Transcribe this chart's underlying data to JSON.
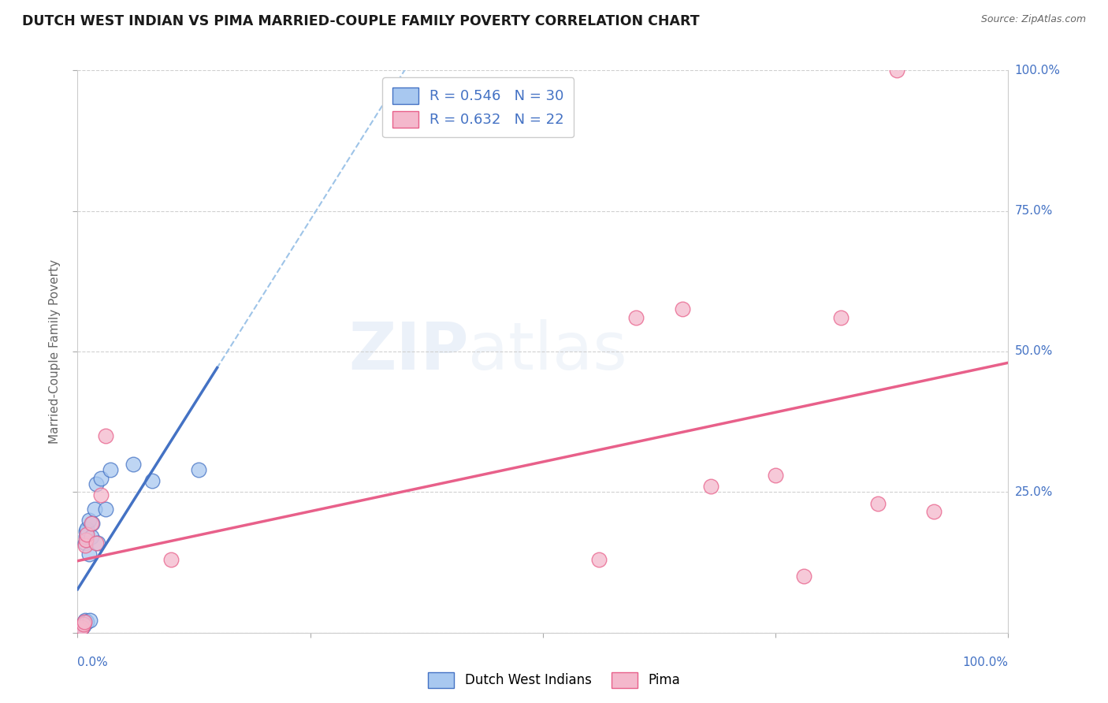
{
  "title": "DUTCH WEST INDIAN VS PIMA MARRIED-COUPLE FAMILY POVERTY CORRELATION CHART",
  "source": "Source: ZipAtlas.com",
  "ylabel": "Married-Couple Family Poverty",
  "xlim": [
    0.0,
    1.0
  ],
  "ylim": [
    0.0,
    1.0
  ],
  "r1": 0.546,
  "n1": 30,
  "r2": 0.632,
  "n2": 22,
  "dutch_x": [
    0.002,
    0.003,
    0.003,
    0.004,
    0.005,
    0.005,
    0.006,
    0.006,
    0.007,
    0.007,
    0.008,
    0.008,
    0.009,
    0.009,
    0.01,
    0.01,
    0.012,
    0.012,
    0.013,
    0.015,
    0.016,
    0.018,
    0.02,
    0.022,
    0.025,
    0.03,
    0.035,
    0.06,
    0.08,
    0.13
  ],
  "dutch_y": [
    0.005,
    0.005,
    0.006,
    0.007,
    0.01,
    0.012,
    0.013,
    0.015,
    0.018,
    0.02,
    0.022,
    0.16,
    0.17,
    0.18,
    0.185,
    0.02,
    0.14,
    0.2,
    0.022,
    0.17,
    0.195,
    0.22,
    0.265,
    0.16,
    0.275,
    0.22,
    0.29,
    0.3,
    0.27,
    0.29
  ],
  "pima_x": [
    0.003,
    0.005,
    0.006,
    0.007,
    0.008,
    0.009,
    0.01,
    0.015,
    0.02,
    0.025,
    0.03,
    0.1,
    0.56,
    0.6,
    0.65,
    0.68,
    0.75,
    0.78,
    0.82,
    0.86,
    0.88,
    0.92
  ],
  "pima_y": [
    0.005,
    0.01,
    0.015,
    0.02,
    0.155,
    0.165,
    0.175,
    0.195,
    0.16,
    0.245,
    0.35,
    0.13,
    0.13,
    0.56,
    0.575,
    0.26,
    0.28,
    0.1,
    0.56,
    0.23,
    1.0,
    0.215
  ],
  "legend1_color": "#a8c8f0",
  "legend2_color": "#f4b8cc",
  "trendline1_color": "#4472c4",
  "trendline2_color": "#e8608a",
  "trendline1_dashed_color": "#9ec4e8",
  "text_color_blue": "#4472c4",
  "axis_label_color": "#666666",
  "grid_color": "#d0d0d0",
  "background_color": "#ffffff"
}
